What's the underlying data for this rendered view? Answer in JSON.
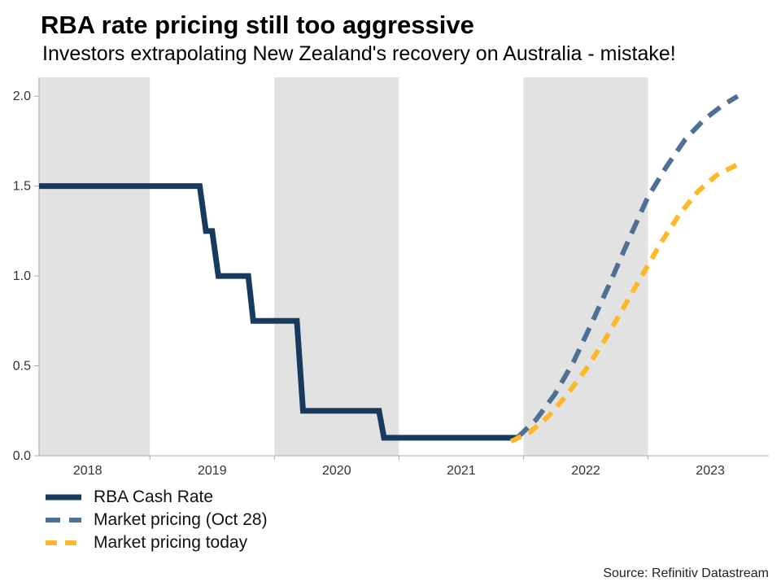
{
  "header": {
    "title": "RBA rate pricing still too aggressive",
    "subtitle": "Investors extrapolating New Zealand's recovery on Australia - mistake!"
  },
  "source": "Source: Refinitiv Datastream",
  "chart_data": {
    "type": "line",
    "title": "RBA rate pricing still too aggressive",
    "subtitle": "Investors extrapolating New Zealand's recovery on Australia - mistake!",
    "xlabel": "",
    "ylabel": "",
    "x_range": [
      2018.11,
      2023.97
    ],
    "y_range": [
      0,
      2.105
    ],
    "y_ticks": [
      0,
      0.5,
      1,
      1.5,
      2
    ],
    "x_tick_years": [
      2018,
      2019,
      2020,
      2021,
      2022,
      2023
    ],
    "bands": [
      [
        2018.11,
        2019
      ],
      [
        2020,
        2021
      ],
      [
        2022,
        2023
      ]
    ],
    "grid": false,
    "legend_position": "bottom-left",
    "colors": {
      "band": "#e2e2e2",
      "axis": "#aaaaaa",
      "tick_text": "#333333"
    },
    "series": [
      {
        "name": "RBA Cash Rate",
        "color": "#173a5e",
        "dash": null,
        "width": 7,
        "points": [
          [
            2018.11,
            1.5
          ],
          [
            2019.4,
            1.5
          ],
          [
            2019.45,
            1.25
          ],
          [
            2019.5,
            1.25
          ],
          [
            2019.55,
            1.0
          ],
          [
            2019.79,
            1.0
          ],
          [
            2019.83,
            0.75
          ],
          [
            2020.18,
            0.75
          ],
          [
            2020.23,
            0.25
          ],
          [
            2020.84,
            0.25
          ],
          [
            2020.88,
            0.1
          ],
          [
            2021.95,
            0.1
          ]
        ]
      },
      {
        "name": "Market pricing (Oct 28)",
        "color": "#4e7094",
        "dash": "18 11",
        "width": 6,
        "points": [
          [
            2021.95,
            0.1
          ],
          [
            2022.1,
            0.2
          ],
          [
            2022.25,
            0.34
          ],
          [
            2022.4,
            0.52
          ],
          [
            2022.55,
            0.74
          ],
          [
            2022.7,
            0.97
          ],
          [
            2022.85,
            1.21
          ],
          [
            2023.0,
            1.44
          ],
          [
            2023.15,
            1.61
          ],
          [
            2023.3,
            1.76
          ],
          [
            2023.45,
            1.87
          ],
          [
            2023.6,
            1.95
          ],
          [
            2023.72,
            2.0
          ]
        ]
      },
      {
        "name": "Market pricing today",
        "color": "#fdb827",
        "dash": "14 10",
        "width": 6,
        "points": [
          [
            2021.9,
            0.08
          ],
          [
            2022.05,
            0.13
          ],
          [
            2022.2,
            0.22
          ],
          [
            2022.35,
            0.34
          ],
          [
            2022.5,
            0.48
          ],
          [
            2022.65,
            0.64
          ],
          [
            2022.8,
            0.82
          ],
          [
            2022.95,
            1.0
          ],
          [
            2023.1,
            1.18
          ],
          [
            2023.25,
            1.34
          ],
          [
            2023.4,
            1.47
          ],
          [
            2023.55,
            1.56
          ],
          [
            2023.72,
            1.62
          ]
        ]
      }
    ]
  }
}
